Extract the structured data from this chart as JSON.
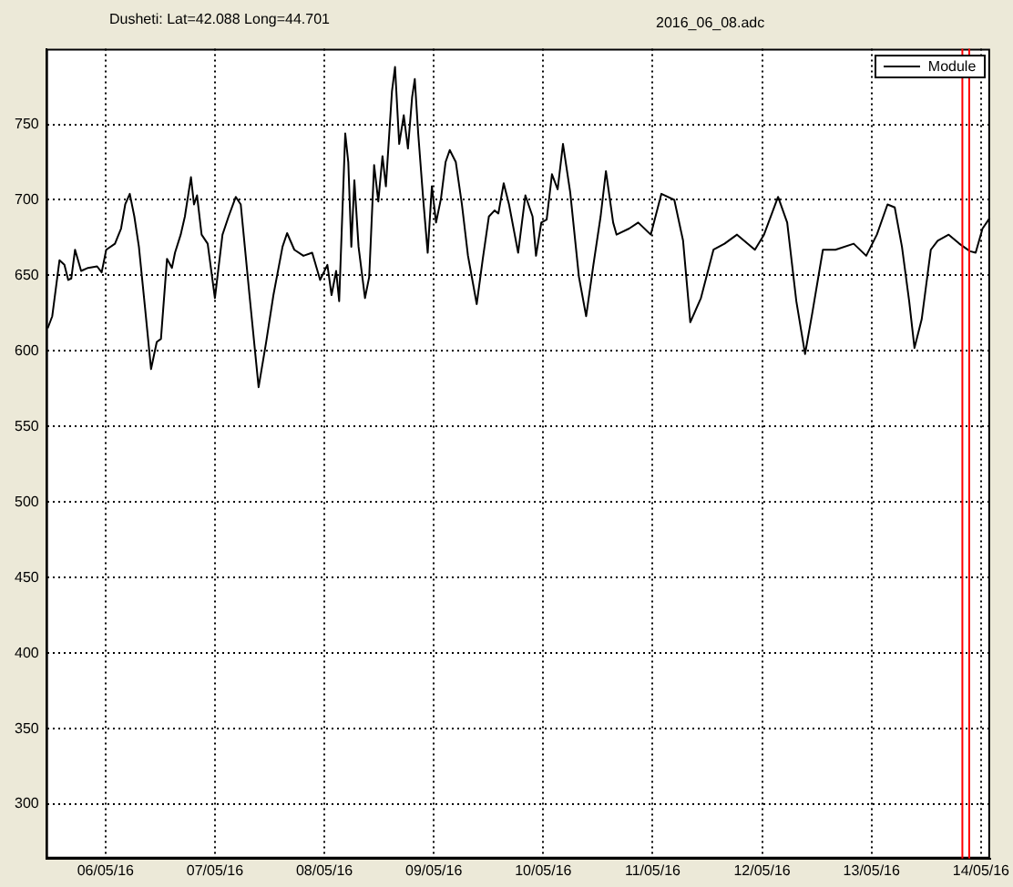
{
  "chart_data": {
    "type": "line",
    "title": "Dusheti: Lat=42.088 Long=44.701",
    "subtitle": "2016_06_08.adc",
    "x": [
      "2016-05-05T11:20",
      "2016-05-05T12:20",
      "2016-05-05T13:55",
      "2016-05-05T15:00",
      "2016-05-05T15:50",
      "2016-05-05T16:30",
      "2016-05-05T17:20",
      "2016-05-05T18:40",
      "2016-05-05T20:10",
      "2016-05-05T22:10",
      "2016-05-05T23:10",
      "2016-05-06T00:10",
      "2016-05-06T02:05",
      "2016-05-06T03:25",
      "2016-05-06T04:20",
      "2016-05-06T05:20",
      "2016-05-06T06:20",
      "2016-05-06T07:20",
      "2016-05-06T08:40",
      "2016-05-06T10:00",
      "2016-05-06T11:15",
      "2016-05-06T12:10",
      "2016-05-06T13:30",
      "2016-05-06T14:35",
      "2016-05-06T15:15",
      "2016-05-06T16:30",
      "2016-05-06T17:25",
      "2016-05-06T18:45",
      "2016-05-06T19:25",
      "2016-05-06T20:05",
      "2016-05-06T21:05",
      "2016-05-06T22:25",
      "2016-05-07T00:00",
      "2016-05-07T01:40",
      "2016-05-07T03:00",
      "2016-05-07T04:35",
      "2016-05-07T05:40",
      "2016-05-07T07:35",
      "2016-05-07T09:35",
      "2016-05-07T11:15",
      "2016-05-07T12:50",
      "2016-05-07T14:50",
      "2016-05-07T15:50",
      "2016-05-07T17:25",
      "2016-05-07T19:25",
      "2016-05-07T21:20",
      "2016-05-07T23:05",
      "2016-05-08T00:40",
      "2016-05-08T01:35",
      "2016-05-08T02:35",
      "2016-05-08T03:15",
      "2016-05-08T04:35",
      "2016-05-08T05:15",
      "2016-05-08T05:55",
      "2016-05-08T06:35",
      "2016-05-08T07:30",
      "2016-05-08T08:55",
      "2016-05-08T09:50",
      "2016-05-08T10:55",
      "2016-05-08T11:50",
      "2016-05-08T12:45",
      "2016-05-08T13:30",
      "2016-05-08T14:50",
      "2016-05-08T15:30",
      "2016-05-08T16:25",
      "2016-05-08T17:25",
      "2016-05-08T18:20",
      "2016-05-08T19:15",
      "2016-05-08T19:50",
      "2016-05-08T20:35",
      "2016-05-08T21:40",
      "2016-05-08T22:40",
      "2016-05-08T23:35",
      "2016-05-09T00:30",
      "2016-05-09T01:35",
      "2016-05-09T02:35",
      "2016-05-09T03:30",
      "2016-05-09T04:50",
      "2016-05-09T06:10",
      "2016-05-09T07:30",
      "2016-05-09T09:25",
      "2016-05-09T10:45",
      "2016-05-09T12:05",
      "2016-05-09T13:20",
      "2016-05-09T14:10",
      "2016-05-09T15:20",
      "2016-05-09T16:30",
      "2016-05-09T18:30",
      "2016-05-09T20:05",
      "2016-05-09T21:40",
      "2016-05-09T22:25",
      "2016-05-09T23:35",
      "2016-05-10T00:45",
      "2016-05-10T01:55",
      "2016-05-10T03:10",
      "2016-05-10T04:20",
      "2016-05-10T05:55",
      "2016-05-10T07:50",
      "2016-05-10T09:25",
      "2016-05-10T11:00",
      "2016-05-10T12:35",
      "2016-05-10T13:45",
      "2016-05-10T15:20",
      "2016-05-10T16:05",
      "2016-05-10T18:50",
      "2016-05-10T20:50",
      "2016-05-10T23:35",
      "2016-05-11T01:55",
      "2016-05-11T04:45",
      "2016-05-11T06:40",
      "2016-05-11T08:15",
      "2016-05-11T10:35",
      "2016-05-11T13:20",
      "2016-05-11T15:45",
      "2016-05-11T18:30",
      "2016-05-11T22:25",
      "2016-05-12T00:25",
      "2016-05-12T03:30",
      "2016-05-12T05:30",
      "2016-05-12T07:30",
      "2016-05-12T09:25",
      "2016-05-12T11:00",
      "2016-05-12T13:20",
      "2016-05-12T16:05",
      "2016-05-12T20:05",
      "2016-05-12T22:50",
      "2016-05-13T01:10",
      "2016-05-13T03:30",
      "2016-05-13T05:05",
      "2016-05-13T06:40",
      "2016-05-13T08:15",
      "2016-05-13T09:25",
      "2016-05-13T11:00",
      "2016-05-13T13:00",
      "2016-05-13T14:30",
      "2016-05-13T16:55",
      "2016-05-13T19:15",
      "2016-05-13T21:35",
      "2016-05-13T22:50",
      "2016-05-14T00:20",
      "2016-05-14T01:55"
    ],
    "series": [
      {
        "name": "Module",
        "color": "#000000",
        "values": [
          615,
          623,
          660,
          657,
          647,
          648,
          667,
          653,
          655,
          656,
          652,
          667,
          671,
          681,
          697,
          704,
          689,
          669,
          629,
          588,
          606,
          608,
          661,
          655,
          665,
          677,
          689,
          715,
          697,
          703,
          677,
          671,
          635,
          677,
          689,
          702,
          697,
          637,
          576,
          606,
          637,
          669,
          678,
          667,
          663,
          665,
          647,
          657,
          637,
          653,
          633,
          744,
          725,
          669,
          713,
          669,
          635,
          649,
          723,
          699,
          729,
          709,
          772,
          788,
          737,
          756,
          734,
          768,
          780,
          744,
          701,
          665,
          709,
          685,
          701,
          725,
          733,
          725,
          697,
          663,
          631,
          661,
          689,
          693,
          691,
          711,
          697,
          665,
          703,
          689,
          663,
          685,
          687,
          717,
          707,
          737,
          705,
          649,
          623,
          657,
          689,
          719,
          685,
          677,
          681,
          685,
          677,
          704,
          700,
          673,
          619,
          635,
          667,
          671,
          677,
          667,
          677,
          702,
          685,
          633,
          598,
          625,
          667,
          667,
          671,
          663,
          677,
          697,
          695,
          669,
          633,
          602,
          621,
          667,
          673,
          677,
          671,
          666,
          665,
          681,
          688
        ]
      }
    ],
    "xlim": [
      "2016-05-05T11:00",
      "2016-05-14T02:00"
    ],
    "xticks": [
      {
        "value": "2016-05-06",
        "label": "06/05/16"
      },
      {
        "value": "2016-05-07",
        "label": "07/05/16"
      },
      {
        "value": "2016-05-08",
        "label": "08/05/16"
      },
      {
        "value": "2016-05-09",
        "label": "09/05/16"
      },
      {
        "value": "2016-05-10",
        "label": "10/05/16"
      },
      {
        "value": "2016-05-11",
        "label": "11/05/16"
      },
      {
        "value": "2016-05-12",
        "label": "12/05/16"
      },
      {
        "value": "2016-05-13",
        "label": "13/05/16"
      },
      {
        "value": "2016-05-14",
        "label": "14/05/16"
      }
    ],
    "ylim": [
      264,
      800
    ],
    "yticks": [
      300,
      350,
      400,
      450,
      500,
      550,
      600,
      650,
      700,
      750
    ],
    "ref_lines": [
      {
        "axis": "x",
        "value": "2016-05-13T19:55",
        "color": "#ff0000"
      },
      {
        "axis": "x",
        "value": "2016-05-13T21:25",
        "color": "#ff0000"
      }
    ],
    "grid": true,
    "legend": "top right",
    "marker": "none",
    "line_style": "solid"
  }
}
